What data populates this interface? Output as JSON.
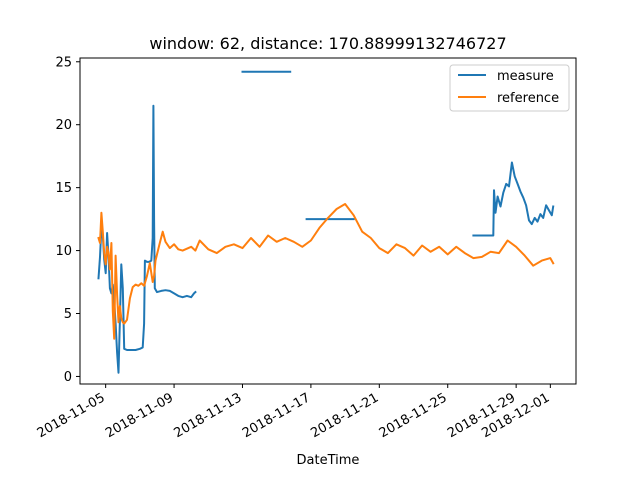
{
  "chart_data": {
    "type": "line",
    "title": "window: 62, distance: 170.88999132746727",
    "xlabel": "DateTime",
    "ylabel": "",
    "x_is_date": true,
    "xlim": [
      "2018-11-03T12:00",
      "2018-12-02T12:00"
    ],
    "ylim": [
      -0.6,
      25.3
    ],
    "yticks": [
      0,
      5,
      10,
      15,
      20,
      25
    ],
    "xticks": [
      "2018-11-05",
      "2018-11-09",
      "2018-11-13",
      "2018-11-17",
      "2018-11-21",
      "2018-11-25",
      "2018-11-29",
      "2018-12-01"
    ],
    "legend_position": "top-right",
    "grid": false,
    "series": [
      {
        "name": "measure",
        "color": "#1f77b4",
        "segments": [
          [
            [
              "2018-11-04T14:00",
              7.8
            ],
            [
              "2018-11-04T16:00",
              9.5
            ],
            [
              "2018-11-04T18:00",
              11.8
            ],
            [
              "2018-11-04T20:00",
              11.2
            ],
            [
              "2018-11-04T22:00",
              9.3
            ],
            [
              "2018-11-05T00:00",
              8.2
            ],
            [
              "2018-11-05T02:00",
              11.4
            ],
            [
              "2018-11-05T04:00",
              9.6
            ],
            [
              "2018-11-05T06:00",
              7.0
            ],
            [
              "2018-11-05T08:00",
              6.6
            ],
            [
              "2018-11-05T10:00",
              7.3
            ],
            [
              "2018-11-05T12:00",
              6.0
            ],
            [
              "2018-11-05T14:00",
              4.2
            ],
            [
              "2018-11-05T16:00",
              1.9
            ],
            [
              "2018-11-05T18:00",
              0.3
            ],
            [
              "2018-11-05T20:00",
              4.5
            ],
            [
              "2018-11-05T22:00",
              8.9
            ],
            [
              "2018-11-06T00:00",
              7.0
            ],
            [
              "2018-11-06T02:00",
              2.2
            ],
            [
              "2018-11-06T06:00",
              2.1
            ],
            [
              "2018-11-06T12:00",
              2.1
            ],
            [
              "2018-11-06T18:00",
              2.1
            ],
            [
              "2018-11-07T00:00",
              2.2
            ],
            [
              "2018-11-07T04:00",
              2.3
            ],
            [
              "2018-11-07T06:00",
              4.2
            ],
            [
              "2018-11-07T07:00",
              9.2
            ],
            [
              "2018-11-07T10:00",
              9.1
            ],
            [
              "2018-11-07T13:00",
              9.1
            ],
            [
              "2018-11-07T16:00",
              9.2
            ],
            [
              "2018-11-07T18:00",
              11.0
            ],
            [
              "2018-11-07T19:00",
              21.5
            ],
            [
              "2018-11-07T20:00",
              12.3
            ],
            [
              "2018-11-07T21:00",
              7.0
            ],
            [
              "2018-11-08T00:00",
              6.7
            ],
            [
              "2018-11-08T06:00",
              6.8
            ],
            [
              "2018-11-08T12:00",
              6.85
            ],
            [
              "2018-11-08T18:00",
              6.8
            ],
            [
              "2018-11-09T00:00",
              6.6
            ],
            [
              "2018-11-09T06:00",
              6.4
            ],
            [
              "2018-11-09T12:00",
              6.3
            ],
            [
              "2018-11-09T18:00",
              6.4
            ],
            [
              "2018-11-10T00:00",
              6.3
            ],
            [
              "2018-11-10T04:00",
              6.6
            ],
            [
              "2018-11-10T06:00",
              6.7
            ]
          ],
          [
            [
              "2018-11-13T00:00",
              24.2
            ],
            [
              "2018-11-15T19:00",
              24.2
            ]
          ],
          [
            [
              "2018-11-16T18:00",
              12.5
            ],
            [
              "2018-11-19T12:00",
              12.5
            ]
          ],
          [
            [
              "2018-11-26T12:00",
              11.2
            ],
            [
              "2018-11-27T16:00",
              11.2
            ],
            [
              "2018-11-27T17:00",
              14.8
            ],
            [
              "2018-11-27T19:00",
              13.0
            ],
            [
              "2018-11-27T22:00",
              14.3
            ],
            [
              "2018-11-28T02:00",
              13.5
            ],
            [
              "2018-11-28T06:00",
              14.6
            ],
            [
              "2018-11-28T10:00",
              15.3
            ],
            [
              "2018-11-28T14:00",
              15.1
            ],
            [
              "2018-11-28T18:00",
              17.0
            ],
            [
              "2018-11-28T22:00",
              15.9
            ],
            [
              "2018-11-29T02:00",
              15.3
            ],
            [
              "2018-11-29T06:00",
              14.7
            ],
            [
              "2018-11-29T10:00",
              14.2
            ],
            [
              "2018-11-29T14:00",
              13.6
            ],
            [
              "2018-11-29T18:00",
              12.4
            ],
            [
              "2018-11-29T22:00",
              12.1
            ],
            [
              "2018-11-30T02:00",
              12.6
            ],
            [
              "2018-11-30T06:00",
              12.3
            ],
            [
              "2018-11-30T10:00",
              12.9
            ],
            [
              "2018-11-30T14:00",
              12.6
            ],
            [
              "2018-11-30T18:00",
              13.6
            ],
            [
              "2018-11-30T22:00",
              13.2
            ],
            [
              "2018-12-01T02:00",
              12.8
            ],
            [
              "2018-12-01T04:00",
              13.5
            ]
          ]
        ]
      },
      {
        "name": "reference",
        "color": "#ff7f0e",
        "segments": [
          [
            [
              "2018-11-04T14:00",
              11.0
            ],
            [
              "2018-11-04T16:00",
              10.6
            ],
            [
              "2018-11-04T18:00",
              13.0
            ],
            [
              "2018-11-04T20:00",
              11.5
            ],
            [
              "2018-11-04T22:00",
              9.8
            ],
            [
              "2018-11-05T00:00",
              8.9
            ],
            [
              "2018-11-05T02:00",
              10.3
            ],
            [
              "2018-11-05T04:00",
              9.8
            ],
            [
              "2018-11-05T06:00",
              8.5
            ],
            [
              "2018-11-05T08:00",
              10.6
            ],
            [
              "2018-11-05T10:00",
              5.2
            ],
            [
              "2018-11-05T12:00",
              3.0
            ],
            [
              "2018-11-05T14:00",
              9.6
            ],
            [
              "2018-11-05T16:00",
              6.5
            ],
            [
              "2018-11-05T18:00",
              4.3
            ],
            [
              "2018-11-05T20:00",
              5.6
            ],
            [
              "2018-11-05T22:00",
              4.6
            ],
            [
              "2018-11-06T00:00",
              4.3
            ],
            [
              "2018-11-06T02:00",
              4.2
            ],
            [
              "2018-11-06T06:00",
              4.5
            ],
            [
              "2018-11-06T10:00",
              6.2
            ],
            [
              "2018-11-06T14:00",
              7.1
            ],
            [
              "2018-11-06T18:00",
              7.3
            ],
            [
              "2018-11-06T22:00",
              7.2
            ],
            [
              "2018-11-07T02:00",
              7.4
            ],
            [
              "2018-11-07T06:00",
              7.2
            ],
            [
              "2018-11-07T10:00",
              8.0
            ],
            [
              "2018-11-07T14:00",
              9.0
            ],
            [
              "2018-11-07T18:00",
              7.5
            ],
            [
              "2018-11-07T20:00",
              8.0
            ],
            [
              "2018-11-07T22:00",
              9.2
            ],
            [
              "2018-11-08T00:00",
              9.7
            ],
            [
              "2018-11-08T04:00",
              10.6
            ],
            [
              "2018-11-08T08:00",
              11.5
            ],
            [
              "2018-11-08T12:00",
              10.7
            ],
            [
              "2018-11-08T18:00",
              10.2
            ],
            [
              "2018-11-09T00:00",
              10.5
            ],
            [
              "2018-11-09T06:00",
              10.1
            ],
            [
              "2018-11-09T12:00",
              10.0
            ],
            [
              "2018-11-10T00:00",
              10.3
            ],
            [
              "2018-11-10T06:00",
              10.0
            ],
            [
              "2018-11-10T12:00",
              10.8
            ],
            [
              "2018-11-11T00:00",
              10.1
            ],
            [
              "2018-11-11T12:00",
              9.8
            ],
            [
              "2018-11-12T00:00",
              10.3
            ],
            [
              "2018-11-12T12:00",
              10.5
            ],
            [
              "2018-11-13T00:00",
              10.2
            ],
            [
              "2018-11-13T12:00",
              11.0
            ],
            [
              "2018-11-14T00:00",
              10.3
            ],
            [
              "2018-11-14T12:00",
              11.2
            ],
            [
              "2018-11-15T00:00",
              10.7
            ],
            [
              "2018-11-15T12:00",
              11.0
            ],
            [
              "2018-11-16T00:00",
              10.7
            ],
            [
              "2018-11-16T12:00",
              10.3
            ],
            [
              "2018-11-17T00:00",
              10.8
            ],
            [
              "2018-11-17T12:00",
              11.8
            ],
            [
              "2018-11-18T00:00",
              12.6
            ],
            [
              "2018-11-18T12:00",
              13.3
            ],
            [
              "2018-11-19T00:00",
              13.7
            ],
            [
              "2018-11-19T12:00",
              12.8
            ],
            [
              "2018-11-20T00:00",
              11.5
            ],
            [
              "2018-11-20T12:00",
              11.0
            ],
            [
              "2018-11-21T00:00",
              10.2
            ],
            [
              "2018-11-21T12:00",
              9.8
            ],
            [
              "2018-11-22T00:00",
              10.5
            ],
            [
              "2018-11-22T12:00",
              10.2
            ],
            [
              "2018-11-23T00:00",
              9.6
            ],
            [
              "2018-11-23T12:00",
              10.4
            ],
            [
              "2018-11-24T00:00",
              9.9
            ],
            [
              "2018-11-24T12:00",
              10.3
            ],
            [
              "2018-11-25T00:00",
              9.7
            ],
            [
              "2018-11-25T12:00",
              10.3
            ],
            [
              "2018-11-26T00:00",
              9.8
            ],
            [
              "2018-11-26T12:00",
              9.4
            ],
            [
              "2018-11-27T00:00",
              9.5
            ],
            [
              "2018-11-27T12:00",
              9.9
            ],
            [
              "2018-11-28T00:00",
              9.8
            ],
            [
              "2018-11-28T12:00",
              10.8
            ],
            [
              "2018-11-29T00:00",
              10.3
            ],
            [
              "2018-11-29T12:00",
              9.6
            ],
            [
              "2018-11-30T00:00",
              8.8
            ],
            [
              "2018-11-30T12:00",
              9.2
            ],
            [
              "2018-12-01T00:00",
              9.4
            ],
            [
              "2018-12-01T04:00",
              9.0
            ]
          ]
        ]
      }
    ]
  }
}
